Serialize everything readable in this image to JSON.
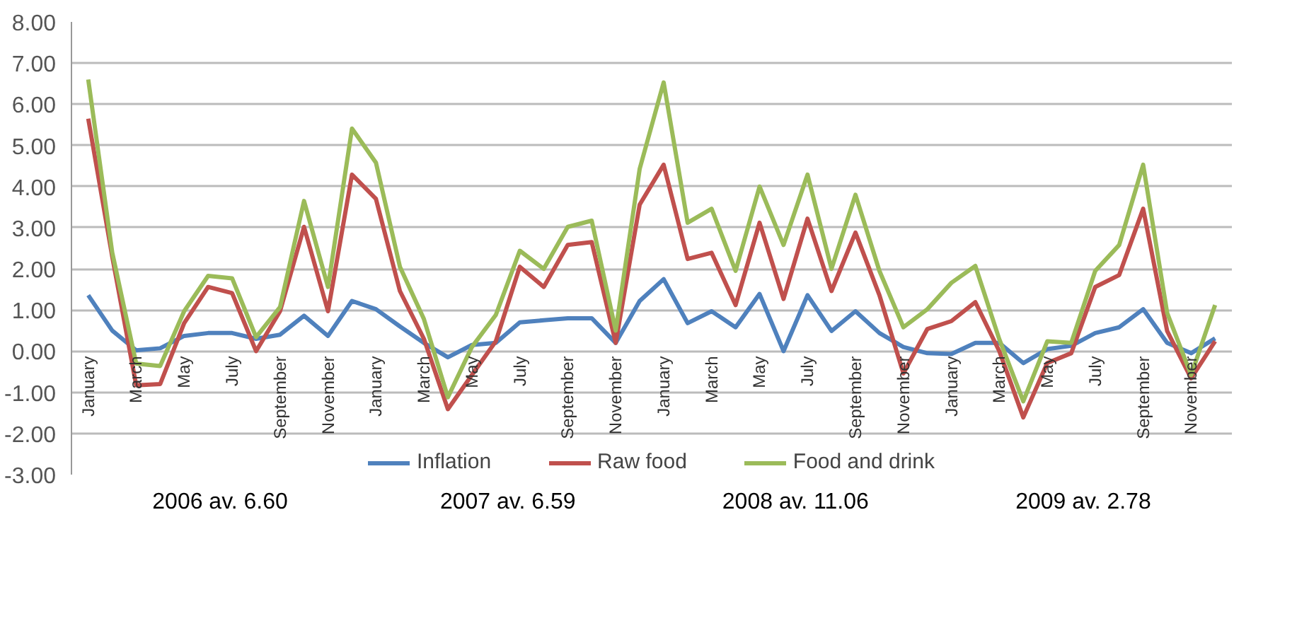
{
  "chart_data": {
    "type": "line",
    "categories": [
      "January",
      null,
      "March",
      null,
      "May",
      null,
      "July",
      null,
      "September",
      null,
      "November",
      null,
      "January",
      null,
      "March",
      null,
      "May",
      null,
      "July",
      null,
      "September",
      null,
      "November",
      null,
      "January",
      null,
      "March",
      null,
      "May",
      null,
      "July",
      null,
      "September",
      null,
      "November",
      null,
      "January",
      null,
      "March",
      null,
      "May",
      null,
      "July",
      null,
      "September",
      null,
      "November",
      null
    ],
    "series": [
      {
        "name": "Inflation",
        "color": "#4f81bd",
        "values": [
          1.36,
          0.5,
          0.02,
          0.07,
          0.37,
          0.44,
          0.44,
          0.3,
          0.4,
          0.86,
          0.37,
          1.22,
          1.02,
          0.6,
          0.2,
          -0.15,
          0.15,
          0.2,
          0.7,
          0.75,
          0.8,
          0.8,
          0.2,
          1.22,
          1.75,
          0.68,
          0.97,
          0.58,
          1.39,
          0.0,
          1.36,
          0.49,
          0.97,
          0.44,
          0.1,
          -0.05,
          -0.07,
          0.2,
          0.2,
          -0.29,
          0.05,
          0.13,
          0.44,
          0.58,
          1.02,
          0.2,
          -0.05,
          0.31
        ]
      },
      {
        "name": "Raw food",
        "color": "#c0504d",
        "values": [
          5.65,
          2.3,
          -0.83,
          -0.8,
          0.68,
          1.56,
          1.41,
          0.0,
          0.97,
          3.02,
          0.97,
          4.29,
          3.7,
          1.46,
          0.3,
          -1.41,
          -0.58,
          0.24,
          2.05,
          1.56,
          2.58,
          2.65,
          0.2,
          3.56,
          4.53,
          2.24,
          2.39,
          1.12,
          3.12,
          1.27,
          3.22,
          1.46,
          2.88,
          1.36,
          -0.54,
          0.54,
          0.73,
          1.19,
          0.0,
          -1.61,
          -0.29,
          -0.05,
          1.56,
          1.85,
          3.46,
          0.49,
          -0.66,
          0.24
        ]
      },
      {
        "name": "Food and drink",
        "color": "#9bbb59",
        "values": [
          6.6,
          2.4,
          -0.3,
          -0.36,
          0.97,
          1.83,
          1.77,
          0.34,
          1.07,
          3.65,
          1.56,
          5.41,
          4.58,
          2.05,
          0.78,
          -1.12,
          0.1,
          0.88,
          2.44,
          2.0,
          3.02,
          3.17,
          0.5,
          4.43,
          6.53,
          3.12,
          3.46,
          1.95,
          4.0,
          2.58,
          4.29,
          2.0,
          3.8,
          1.95,
          0.58,
          1.02,
          1.66,
          2.07,
          0.29,
          -1.22,
          0.24,
          0.2,
          1.95,
          2.58,
          4.53,
          0.93,
          -0.58,
          1.12
        ]
      }
    ],
    "ylim": [
      -3,
      8
    ],
    "yticks": [
      {
        "value": 8,
        "label": "8.00"
      },
      {
        "value": 7,
        "label": "7.00"
      },
      {
        "value": 6,
        "label": "6.00"
      },
      {
        "value": 5,
        "label": "5.00"
      },
      {
        "value": 4,
        "label": "4.00"
      },
      {
        "value": 3,
        "label": "3.00"
      },
      {
        "value": 2,
        "label": "2.00"
      },
      {
        "value": 1,
        "label": "1.00"
      },
      {
        "value": 0,
        "label": "0.00"
      },
      {
        "value": -1,
        "label": "-1.00"
      },
      {
        "value": -2,
        "label": "-2.00"
      },
      {
        "value": -3,
        "label": "-3.00"
      }
    ],
    "annotations": [
      "2006 av. 6.60",
      "2007 av. 6.59",
      "2008 av. 11.06",
      "2009 av. 2.78"
    ],
    "grid": "y",
    "legend": "bottom",
    "line_style": "solid"
  }
}
